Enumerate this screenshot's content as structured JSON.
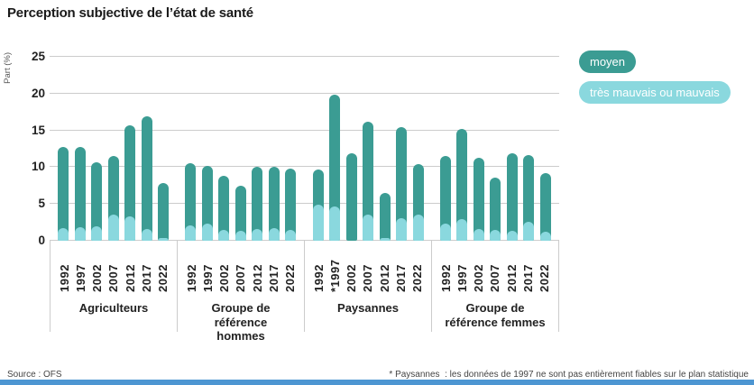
{
  "title": "Perception subjective de l’état de santé",
  "y_axis_label": "Part (%)",
  "legend": [
    {
      "label": "moyen",
      "color": "#3b9c93"
    },
    {
      "label": "très mauvais ou mauvais",
      "color": "#8ad8de"
    }
  ],
  "colors": {
    "moyen": "#3b9c93",
    "tres_mauvais_ou_mauvais": "#8ad8de",
    "grid": "#cccccc",
    "footer_bar": "#4d96d2"
  },
  "source": "Source : OFS",
  "footnote": "* Paysannes  : les données de 1997 ne sont pas entièrement fiables sur le plan statistique",
  "chart_data": {
    "type": "bar",
    "stacked": true,
    "title": "Perception subjective de l’état de santé",
    "xlabel": "",
    "ylabel": "Part (%)",
    "ylim": [
      0,
      25
    ],
    "yticks": [
      0,
      5,
      10,
      15,
      20,
      25
    ],
    "grid": true,
    "legend_position": "right",
    "series_names": [
      "moyen",
      "très mauvais ou mauvais"
    ],
    "groups": [
      {
        "label": "Agriculteurs",
        "years": [
          "1992",
          "1997",
          "2002",
          "2007",
          "2012",
          "2017",
          "2022"
        ],
        "moyen": [
          11.0,
          11.0,
          8.7,
          7.9,
          12.4,
          15.3,
          7.4
        ],
        "tres_mauvais_ou_mauvais": [
          1.7,
          1.8,
          2.0,
          3.6,
          3.3,
          1.6,
          0.4
        ],
        "totals": [
          12.7,
          12.8,
          10.7,
          11.5,
          15.7,
          16.9,
          7.8
        ]
      },
      {
        "label": "Groupe de référence hommes",
        "years": [
          "1992",
          "1997",
          "2002",
          "2007",
          "2012",
          "2017",
          "2022"
        ],
        "moyen": [
          8.4,
          7.9,
          7.3,
          6.1,
          8.5,
          8.3,
          8.3
        ],
        "tres_mauvais_ou_mauvais": [
          2.1,
          2.3,
          1.5,
          1.4,
          1.6,
          1.7,
          1.5
        ],
        "totals": [
          10.5,
          10.2,
          8.8,
          7.5,
          10.1,
          10.0,
          9.8
        ]
      },
      {
        "label": "Paysannes",
        "years": [
          "1992",
          "*1997",
          "2002",
          "2007",
          "2012",
          "2017",
          "2022"
        ],
        "moyen": [
          4.8,
          15.2,
          11.9,
          12.7,
          6.1,
          12.3,
          6.9
        ],
        "tres_mauvais_ou_mauvais": [
          4.9,
          4.7,
          0,
          3.5,
          0.4,
          3.1,
          3.5
        ],
        "totals": [
          9.7,
          19.9,
          11.9,
          16.2,
          6.5,
          15.4,
          10.4
        ]
      },
      {
        "label": "Groupe de référence femmes",
        "years": [
          "1992",
          "1997",
          "2002",
          "2007",
          "2012",
          "2017",
          "2022"
        ],
        "moyen": [
          9.2,
          12.3,
          9.7,
          7.1,
          10.6,
          9.1,
          8.0
        ],
        "tres_mauvais_ou_mauvais": [
          2.3,
          2.9,
          1.6,
          1.5,
          1.3,
          2.6,
          1.2
        ],
        "totals": [
          11.5,
          15.2,
          11.3,
          8.6,
          11.9,
          11.7,
          9.2
        ]
      }
    ]
  }
}
